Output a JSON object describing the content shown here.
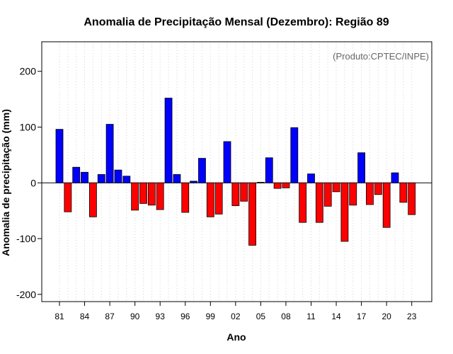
{
  "colors": {
    "positive": "#0000FF",
    "negative": "#FF0000",
    "bar_outline": "#000000",
    "grid": "#d3d3d3",
    "credit_text": "#666666"
  },
  "chart_data": {
    "type": "bar",
    "title": "Anomalia de Precipitação Mensal (Dezembro): Região 89",
    "xlabel": "Ano",
    "ylabel": "Anomalia de precipitação (mm)",
    "annotation": "(Produto:CPTEC/INPE)",
    "ylim": [
      -213,
      253
    ],
    "yticks": [
      -200,
      -100,
      0,
      100,
      200
    ],
    "grid": "vertical dotted lines at each year",
    "categories": [
      "81",
      "82",
      "83",
      "84",
      "85",
      "86",
      "87",
      "88",
      "89",
      "90",
      "91",
      "92",
      "93",
      "94",
      "95",
      "96",
      "97",
      "98",
      "99",
      "00",
      "01",
      "02",
      "03",
      "04",
      "05",
      "06",
      "07",
      "08",
      "09",
      "10",
      "11",
      "12",
      "13",
      "14",
      "15",
      "16",
      "17",
      "18",
      "19",
      "20",
      "21",
      "22",
      "23"
    ],
    "xtick_labels": [
      "81",
      "84",
      "87",
      "90",
      "93",
      "96",
      "99",
      "02",
      "05",
      "08",
      "11",
      "14",
      "17",
      "20",
      "23"
    ],
    "values": [
      96,
      -52,
      28,
      19,
      -61,
      15,
      105,
      23,
      12,
      -49,
      -37,
      -40,
      -48,
      152,
      15,
      -53,
      3,
      44,
      -61,
      -56,
      74,
      -41,
      -33,
      -112,
      1,
      45,
      -10,
      -9,
      99,
      -71,
      16,
      -71,
      -42,
      -16,
      -105,
      -40,
      54,
      -39,
      -21,
      -80,
      18,
      -35,
      -57
    ]
  }
}
